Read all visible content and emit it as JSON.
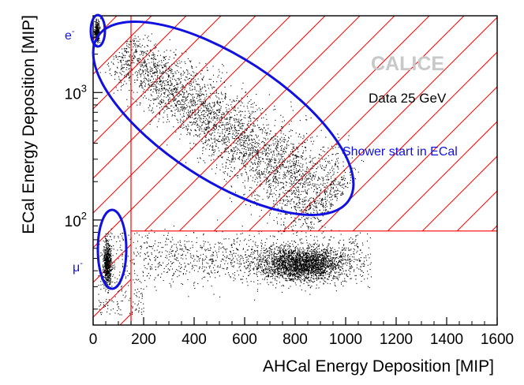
{
  "chart_data": {
    "type": "scatter",
    "xlabel": "AHCal Energy Deposition [MIP]",
    "ylabel": "ECal Energy Deposition [MIP]",
    "xlim": [
      0,
      1600
    ],
    "ylim": [
      15,
      4000
    ],
    "yscale": "log",
    "x_ticks": [
      0,
      200,
      400,
      600,
      800,
      1000,
      1200,
      1400,
      1600
    ],
    "x_tick_labels": [
      "0",
      "200",
      "400",
      "600",
      "800",
      "1000",
      "1200",
      "1400",
      "1600"
    ],
    "y_ticks": [
      100,
      1000
    ],
    "y_tick_labels": [
      {
        "base": "10",
        "exp": "2"
      },
      {
        "base": "10",
        "exp": "3"
      }
    ],
    "cut_lines": {
      "x": 150,
      "y": 82
    },
    "clusters": [
      {
        "name": "electron",
        "center_x": 15,
        "center_y": 3000,
        "spread_x": 8,
        "spread_y_log": 0.06,
        "count": 300
      },
      {
        "name": "shower_in_ecal",
        "from_x": 100,
        "from_y": 2200,
        "to_x": 950,
        "to_y": 130,
        "count": 3600
      },
      {
        "name": "muon",
        "center_x": 55,
        "center_y": 45,
        "spread_x": 12,
        "spread_y_log": 0.12,
        "count": 650
      },
      {
        "name": "hadron_band",
        "center_x": 820,
        "center_y": 45,
        "spread_x": 110,
        "spread_y_log": 0.09,
        "count": 2200
      },
      {
        "name": "hadron_tail",
        "from_x": 200,
        "to_x": 1100,
        "center_y": 50,
        "count": 1200
      },
      {
        "name": "low_energy",
        "from_x": 20,
        "to_x": 200,
        "from_y": 18,
        "to_y": 80,
        "count": 250
      }
    ],
    "annotations": {
      "watermark": "CALICE",
      "dataset": "Data 25 GeV",
      "shower_label": "Shower start in ECal",
      "electron_label": {
        "base": "e",
        "sup": "-"
      },
      "muon_label": {
        "base": "μ",
        "sup": "-"
      }
    },
    "colors": {
      "points": "#000000",
      "cuts": "#ff0000",
      "annotation": "#1010e0",
      "watermark": "#c8c8c8"
    }
  }
}
